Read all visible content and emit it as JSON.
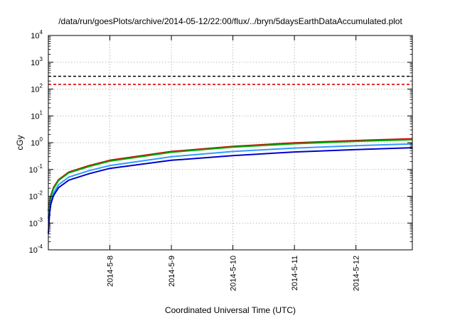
{
  "chart_data": {
    "type": "line",
    "title": "/data/run/goesPlots/archive/2014-05-12/22:00/flux/../bryn/5daysEarthDataAccumulated.plot",
    "xlabel": "Coordinated Universal Time (UTC)",
    "ylabel": "cGy",
    "yscale": "log",
    "ylim": [
      0.0001,
      10000
    ],
    "y_ticks": [
      {
        "base": "10",
        "exp": "-4",
        "value": 0.0001
      },
      {
        "base": "10",
        "exp": "-3",
        "value": 0.001
      },
      {
        "base": "10",
        "exp": "-2",
        "value": 0.01
      },
      {
        "base": "10",
        "exp": "-1",
        "value": 0.1
      },
      {
        "base": "10",
        "exp": "0",
        "value": 1
      },
      {
        "base": "10",
        "exp": "1",
        "value": 10
      },
      {
        "base": "10",
        "exp": "2",
        "value": 100
      },
      {
        "base": "10",
        "exp": "3",
        "value": 1000
      },
      {
        "base": "10",
        "exp": "4",
        "value": 10000
      }
    ],
    "xlim": [
      "2014-05-07 00:00",
      "2014-05-12 22:00"
    ],
    "x_ticks": [
      {
        "label": "2014-5-8",
        "date": "2014-05-08"
      },
      {
        "label": "2014-5-9",
        "date": "2014-05-09"
      },
      {
        "label": "2014-5-10",
        "date": "2014-05-10"
      },
      {
        "label": "2014-5-11",
        "date": "2014-05-11"
      },
      {
        "label": "2014-5-12",
        "date": "2014-05-12"
      }
    ],
    "grid": true,
    "legend": "none",
    "threshold_lines": [
      {
        "value": 300,
        "color": "#000000",
        "style": "dashed"
      },
      {
        "value": 150,
        "color": "#dd0000",
        "style": "dashed"
      }
    ],
    "x": [
      "2014-05-07 00:00",
      "2014-05-07 00:30",
      "2014-05-07 01:00",
      "2014-05-07 02:00",
      "2014-05-07 04:00",
      "2014-05-07 08:00",
      "2014-05-07 16:00",
      "2014-05-08 00:00",
      "2014-05-09 00:00",
      "2014-05-10 00:00",
      "2014-05-11 00:00",
      "2014-05-12 00:00",
      "2014-05-12 22:00"
    ],
    "series": [
      {
        "color": "#cc0000",
        "values": [
          0.003,
          0.006,
          0.011,
          0.021,
          0.042,
          0.08,
          0.14,
          0.22,
          0.47,
          0.73,
          0.98,
          1.2,
          1.4
        ]
      },
      {
        "color": "#00aa00",
        "values": [
          0.0028,
          0.0055,
          0.0102,
          0.019,
          0.039,
          0.075,
          0.13,
          0.205,
          0.44,
          0.68,
          0.91,
          1.12,
          1.3
        ]
      },
      {
        "color": "#3399ff",
        "values": [
          0.0015,
          0.0035,
          0.0068,
          0.013,
          0.027,
          0.052,
          0.091,
          0.14,
          0.3,
          0.47,
          0.63,
          0.77,
          0.9
        ]
      },
      {
        "color": "#0000cc",
        "values": [
          0.0004,
          0.0024,
          0.0052,
          0.0105,
          0.021,
          0.04,
          0.07,
          0.11,
          0.22,
          0.33,
          0.45,
          0.55,
          0.65
        ]
      }
    ]
  }
}
